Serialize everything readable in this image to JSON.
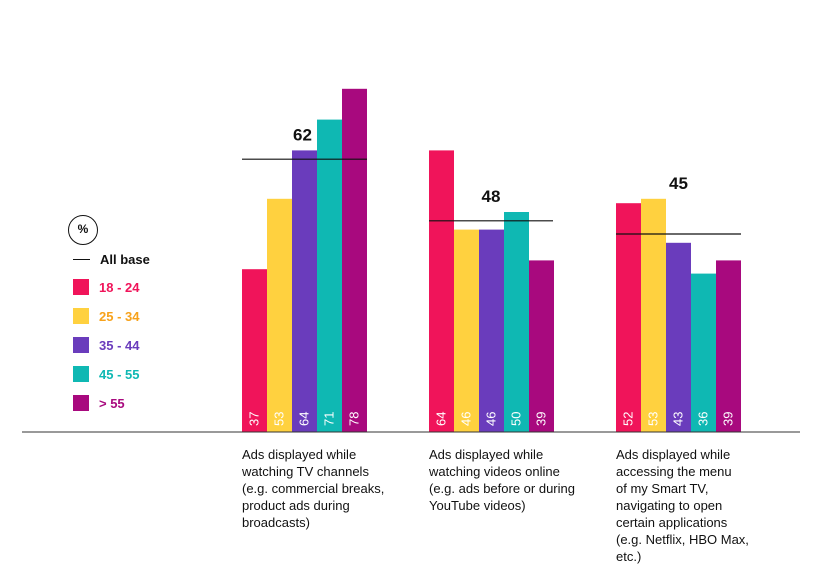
{
  "legend": {
    "unit_badge": "%",
    "all_base_label": "All base"
  },
  "chart_data": {
    "type": "bar",
    "categories": [
      "Ads displayed while watching TV channels (e.g. commercial breaks, product ads during broadcasts)",
      "Ads displayed while watching videos online (e.g. ads before or during YouTube videos)",
      "Ads displayed while accessing the menu of my Smart TV, navigating to open certain applications (e.g. Netflix, HBO Max, etc.)"
    ],
    "category_lines": [
      [
        "Ads displayed while",
        "watching TV channels",
        "(e.g. commercial breaks,",
        "product ads during",
        "broadcasts)"
      ],
      [
        "Ads displayed while",
        "watching videos online",
        "(e.g. ads before or during",
        "YouTube videos)"
      ],
      [
        "Ads displayed while",
        "accessing the menu",
        "of my Smart TV,",
        "navigating to open",
        "certain applications",
        "(e.g. Netflix, HBO Max,",
        "etc.)"
      ]
    ],
    "series": [
      {
        "name": "18 - 24",
        "color": "#f0145a",
        "label_color": "#f0145a",
        "values": [
          37,
          64,
          52
        ]
      },
      {
        "name": "25 - 34",
        "color": "#ffd13f",
        "label_color": "#f7a21b",
        "values": [
          53,
          46,
          53
        ]
      },
      {
        "name": "35 - 44",
        "color": "#6a3cbc",
        "label_color": "#6a3cbc",
        "values": [
          64,
          46,
          43
        ]
      },
      {
        "name": "45 - 55",
        "color": "#0fb8b3",
        "label_color": "#0fb8b3",
        "values": [
          71,
          50,
          36
        ]
      },
      {
        "name": "> 55",
        "color": "#a8097e",
        "label_color": "#a8097e",
        "values": [
          78,
          39,
          39
        ]
      }
    ],
    "all_base": {
      "name": "All base",
      "values": [
        62,
        48,
        45
      ]
    },
    "ylim": [
      0,
      80
    ],
    "value_labels": "inside bar bottom, rotated",
    "grid": false,
    "legend_position": "left"
  }
}
